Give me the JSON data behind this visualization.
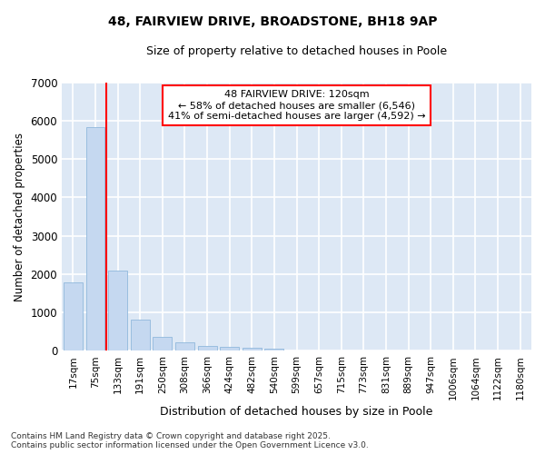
{
  "title": "48, FAIRVIEW DRIVE, BROADSTONE, BH18 9AP",
  "subtitle": "Size of property relative to detached houses in Poole",
  "xlabel": "Distribution of detached houses by size in Poole",
  "ylabel": "Number of detached properties",
  "categories": [
    "17sqm",
    "75sqm",
    "133sqm",
    "191sqm",
    "250sqm",
    "308sqm",
    "366sqm",
    "424sqm",
    "482sqm",
    "540sqm",
    "599sqm",
    "657sqm",
    "715sqm",
    "773sqm",
    "831sqm",
    "889sqm",
    "947sqm",
    "1006sqm",
    "1064sqm",
    "1122sqm",
    "1180sqm"
  ],
  "values": [
    1780,
    5820,
    2090,
    820,
    370,
    230,
    130,
    95,
    80,
    55,
    20,
    10,
    5,
    0,
    0,
    0,
    0,
    0,
    0,
    0,
    0
  ],
  "bar_color": "#c5d8f0",
  "bar_edge_color": "#90b8dc",
  "vline_x_index": 1.5,
  "vline_color": "red",
  "annotation_title": "48 FAIRVIEW DRIVE: 120sqm",
  "annotation_line1": "← 58% of detached houses are smaller (6,546)",
  "annotation_line2": "41% of semi-detached houses are larger (4,592) →",
  "annotation_box_color": "white",
  "annotation_box_edge": "red",
  "ylim": [
    0,
    7000
  ],
  "yticks": [
    0,
    1000,
    2000,
    3000,
    4000,
    5000,
    6000,
    7000
  ],
  "bg_color": "#dde8f5",
  "grid_color": "white",
  "footer_line1": "Contains HM Land Registry data © Crown copyright and database right 2025.",
  "footer_line2": "Contains public sector information licensed under the Open Government Licence v3.0."
}
